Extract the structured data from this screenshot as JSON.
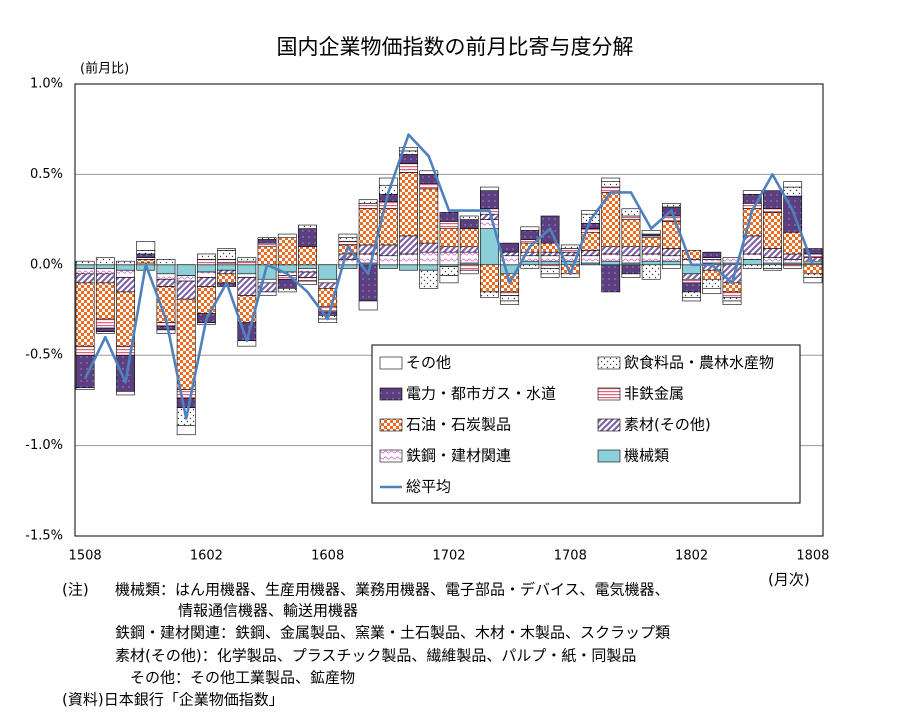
{
  "chart_data": {
    "type": "bar",
    "stacked": true,
    "title": "国内企業物価指数の前月比寄与度分解",
    "y_axis_label": "(前月比)",
    "x_axis_label": "(月次)",
    "categories": [
      "1508",
      null,
      null,
      null,
      null,
      null,
      "1602",
      null,
      null,
      null,
      null,
      null,
      "1608",
      null,
      null,
      null,
      null,
      null,
      "1702",
      null,
      null,
      null,
      null,
      null,
      "1708",
      null,
      null,
      null,
      null,
      null,
      "1802",
      null,
      null,
      null,
      null,
      null,
      "1808"
    ],
    "ylim": [
      -1.5,
      1.0
    ],
    "yticks": [
      {
        "value": -1.5,
        "label": "-1.5%"
      },
      {
        "value": -1.0,
        "label": "-1.0%"
      },
      {
        "value": -0.5,
        "label": "-0.5%"
      },
      {
        "value": 0,
        "label": "0.0%"
      },
      {
        "value": 0.5,
        "label": "0.5%"
      },
      {
        "value": 1.0,
        "label": "1.0%"
      }
    ],
    "grid": true,
    "legend": "lower right",
    "series": [
      {
        "name": "その他",
        "color": "#ffffff",
        "values": [
          -0.01,
          -0.01,
          -0.02,
          0.05,
          -0.02,
          -0.05,
          -0.01,
          0.01,
          -0.03,
          -0.02,
          0.02,
          -0.02,
          -0.02,
          0.02,
          -0.05,
          0.04,
          0.02,
          0.02,
          -0.04,
          -0.02,
          0.02,
          -0.02,
          0.02,
          -0.02,
          -0.02,
          0.02,
          0.02,
          -0.02,
          0.02,
          -0.02,
          -0.02,
          -0.03,
          -0.02,
          0.02,
          -0.01,
          0.03,
          -0.03
        ]
      },
      {
        "name": "飲食料品・農林水産物",
        "color": "#404040",
        "values": [
          0.02,
          0.04,
          0.02,
          0.02,
          0.03,
          -0.1,
          0.03,
          0.05,
          0.02,
          0.01,
          -0.02,
          0.02,
          -0.02,
          0.02,
          0.02,
          0.05,
          0.02,
          -0.1,
          -0.05,
          0.02,
          -0.03,
          -0.03,
          -0.02,
          -0.03,
          0.02,
          0.05,
          0.03,
          0.04,
          -0.08,
          0.02,
          -0.03,
          -0.05,
          -0.02,
          -0.02,
          -0.02,
          0.05,
          -0.02
        ]
      },
      {
        "name": "電力・都市ガス・水道",
        "color": "#5b3f80",
        "values": [
          -0.18,
          -0.02,
          -0.2,
          0.02,
          -0.02,
          -0.05,
          -0.05,
          -0.02,
          -0.1,
          0.02,
          -0.05,
          0.1,
          -0.02,
          0.0,
          -0.2,
          0.04,
          0.05,
          0.05,
          0.05,
          0.05,
          0.1,
          0.05,
          0.05,
          0.15,
          0.0,
          0.03,
          -0.15,
          -0.05,
          0.01,
          0.05,
          -0.05,
          0.03,
          0.0,
          0.05,
          0.1,
          0.2,
          0.03
        ]
      },
      {
        "name": "非鉄金属",
        "color": "#e0607a",
        "values": [
          -0.05,
          -0.05,
          -0.05,
          0.01,
          -0.02,
          -0.05,
          0.03,
          0.02,
          0.02,
          0.02,
          -0.02,
          -0.02,
          -0.03,
          0.02,
          0.03,
          0.04,
          0.05,
          0.03,
          0.04,
          -0.03,
          0.03,
          -0.02,
          0.02,
          -0.02,
          0.02,
          0.02,
          0.03,
          0.02,
          0.01,
          0.03,
          -0.02,
          0.01,
          -0.03,
          0.03,
          0.02,
          -0.02,
          0.02
        ]
      },
      {
        "name": "石油・石炭製品",
        "color": "#f06a20",
        "values": [
          -0.35,
          -0.2,
          -0.3,
          0.02,
          -0.2,
          -0.5,
          -0.15,
          -0.05,
          -0.15,
          0.1,
          0.15,
          0.1,
          -0.1,
          0.05,
          0.2,
          0.2,
          0.35,
          0.3,
          0.1,
          0.1,
          -0.15,
          -0.1,
          0.05,
          0.05,
          -0.05,
          0.1,
          0.3,
          0.15,
          0.05,
          0.15,
          0.05,
          -0.05,
          -0.05,
          0.15,
          0.2,
          0.12,
          -0.05
        ]
      },
      {
        "name": "素材(その他)",
        "color": "#8064a2",
        "values": [
          -0.05,
          -0.05,
          -0.08,
          0.0,
          -0.04,
          -0.1,
          -0.05,
          -0.02,
          -0.1,
          -0.05,
          0.0,
          -0.03,
          -0.03,
          0.03,
          0.05,
          0.06,
          0.1,
          0.05,
          0.03,
          0.03,
          0.03,
          0.02,
          0.02,
          0.02,
          0.02,
          0.03,
          0.04,
          0.05,
          0.04,
          0.04,
          -0.03,
          -0.03,
          -0.1,
          0.1,
          0.05,
          0.03,
          0.02
        ]
      },
      {
        "name": "鉄鋼・建材関連",
        "color": "#e070d8",
        "values": [
          -0.03,
          -0.03,
          -0.04,
          0.01,
          -0.03,
          -0.03,
          -0.03,
          0.01,
          -0.02,
          -0.02,
          -0.02,
          -0.02,
          -0.02,
          0.03,
          0.05,
          0.05,
          0.06,
          0.07,
          0.07,
          0.06,
          0.05,
          0.05,
          0.03,
          0.03,
          0.03,
          0.04,
          0.04,
          0.04,
          0.04,
          0.03,
          0.03,
          0.02,
          0.03,
          0.03,
          0.03,
          0.02,
          0.01
        ]
      },
      {
        "name": "機械類",
        "color": "#8ccfd8",
        "values": [
          -0.02,
          -0.02,
          -0.03,
          -0.03,
          -0.05,
          -0.06,
          -0.04,
          -0.03,
          -0.05,
          -0.08,
          -0.04,
          -0.02,
          -0.08,
          -0.02,
          0.01,
          -0.02,
          -0.03,
          -0.03,
          -0.01,
          0.01,
          0.2,
          -0.05,
          0.02,
          0.02,
          0.02,
          0.01,
          0.02,
          0.01,
          0.02,
          0.02,
          -0.05,
          0.01,
          0.01,
          0.03,
          0.01,
          0.01,
          0.01
        ]
      },
      {
        "name": "総平均",
        "type": "line",
        "color": "#4f81bd",
        "values": [
          -0.63,
          -0.4,
          -0.65,
          0.0,
          -0.3,
          -0.85,
          -0.3,
          -0.1,
          -0.42,
          0.0,
          -0.05,
          -0.15,
          -0.3,
          0.1,
          -0.05,
          0.4,
          0.72,
          0.6,
          0.3,
          0.3,
          0.3,
          -0.1,
          0.1,
          0.2,
          -0.05,
          0.25,
          0.4,
          0.4,
          0.2,
          0.3,
          0.0,
          0.0,
          -0.1,
          0.3,
          0.5,
          0.3,
          0.0
        ]
      }
    ]
  },
  "notes": {
    "label": "(注)",
    "lines": [
      "機械類：はん用機器、生産用機器、業務用機器、電子部品・デバイス、電気機器、",
      "情報通信機器、輸送用機器",
      "鉄鋼・建材関連：鉄鋼、金属製品、窯業・土石製品、木材・木製品、スクラップ類",
      "素材(その他)：化学製品、プラスチック製品、繊維製品、パルプ・紙・同製品",
      "その他：その他工業製品、鉱産物"
    ],
    "source": "(資料)日本銀行「企業物価指数」"
  }
}
